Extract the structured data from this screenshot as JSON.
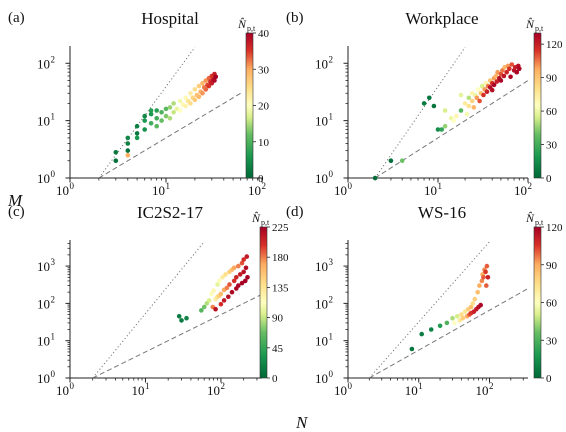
{
  "figure": {
    "ylabel": "M",
    "xlabel": "N"
  },
  "chart_data": [
    {
      "type": "scatter",
      "panel_label": "(a)",
      "title": "Hospital",
      "xscale": "log",
      "yscale": "log",
      "xlim": [
        1,
        100
      ],
      "ylim": [
        1,
        200
      ],
      "xticks": [
        {
          "v": 1,
          "base": "10",
          "exp": "0"
        },
        {
          "v": 10,
          "base": "10",
          "exp": "1"
        },
        {
          "v": 100,
          "base": "10",
          "exp": "2"
        }
      ],
      "yticks": [
        {
          "v": 1,
          "base": "10",
          "exp": "0"
        },
        {
          "v": 10,
          "base": "10",
          "exp": "1"
        },
        {
          "v": 100,
          "base": "10",
          "exp": "2"
        }
      ],
      "colorbar": {
        "label": "N̂ p,t",
        "min": 0,
        "max": 40,
        "ticks": [
          "0",
          "10",
          "20",
          "30",
          "40"
        ]
      },
      "reference_lines": [
        {
          "style": "dotted",
          "x": [
            2,
            20
          ],
          "y": [
            1,
            190
          ]
        },
        {
          "style": "dashed",
          "x": [
            2,
            60
          ],
          "y": [
            1,
            30
          ]
        }
      ],
      "points": [
        [
          3,
          2,
          1
        ],
        [
          3,
          2.8,
          2
        ],
        [
          4,
          4,
          3
        ],
        [
          4,
          3,
          1
        ],
        [
          4,
          5,
          4
        ],
        [
          5,
          6,
          2
        ],
        [
          5,
          8,
          3
        ],
        [
          5,
          5,
          6
        ],
        [
          6,
          7,
          5
        ],
        [
          6,
          10,
          6
        ],
        [
          6,
          12,
          4
        ],
        [
          7,
          9,
          9
        ],
        [
          7,
          13,
          6
        ],
        [
          7,
          15,
          7
        ],
        [
          8,
          8,
          11
        ],
        [
          8,
          11,
          9
        ],
        [
          8,
          15,
          7
        ],
        [
          9,
          10,
          12
        ],
        [
          9,
          14,
          10
        ],
        [
          10,
          12,
          13
        ],
        [
          10,
          16,
          11
        ],
        [
          11,
          11,
          15
        ],
        [
          11,
          17,
          14
        ],
        [
          12,
          14,
          16
        ],
        [
          12,
          20,
          15
        ],
        [
          13,
          16,
          18
        ],
        [
          14,
          15,
          20
        ],
        [
          14,
          22,
          19
        ],
        [
          15,
          19,
          21
        ],
        [
          16,
          18,
          22
        ],
        [
          16,
          25,
          21
        ],
        [
          17,
          22,
          24
        ],
        [
          18,
          20,
          25
        ],
        [
          18,
          30,
          23
        ],
        [
          19,
          25,
          26
        ],
        [
          20,
          23,
          27
        ],
        [
          20,
          35,
          25
        ],
        [
          21,
          28,
          28
        ],
        [
          22,
          26,
          29
        ],
        [
          22,
          40,
          27
        ],
        [
          23,
          32,
          30
        ],
        [
          24,
          30,
          31
        ],
        [
          24,
          45,
          29
        ],
        [
          25,
          38,
          32
        ],
        [
          26,
          35,
          33
        ],
        [
          26,
          50,
          31
        ],
        [
          27,
          42,
          34
        ],
        [
          28,
          40,
          35
        ],
        [
          28,
          55,
          33
        ],
        [
          29,
          48,
          36
        ],
        [
          30,
          45,
          37
        ],
        [
          30,
          60,
          35
        ],
        [
          31,
          52,
          38
        ],
        [
          32,
          50,
          39
        ],
        [
          32,
          65,
          37
        ],
        [
          33,
          58,
          40
        ],
        [
          4,
          2.5,
          30
        ]
      ]
    },
    {
      "type": "scatter",
      "panel_label": "(b)",
      "title": "Workplace",
      "xscale": "log",
      "yscale": "log",
      "xlim": [
        1,
        100
      ],
      "ylim": [
        1,
        200
      ],
      "xticks": [
        {
          "v": 1,
          "base": "10",
          "exp": "0"
        },
        {
          "v": 10,
          "base": "10",
          "exp": "1"
        },
        {
          "v": 100,
          "base": "10",
          "exp": "2"
        }
      ],
      "yticks": [
        {
          "v": 1,
          "base": "10",
          "exp": "0"
        },
        {
          "v": 10,
          "base": "10",
          "exp": "1"
        },
        {
          "v": 100,
          "base": "10",
          "exp": "2"
        }
      ],
      "colorbar": {
        "label": "N̂ p,t",
        "min": 0,
        "max": 130,
        "ticks": [
          "0",
          "30",
          "60",
          "90",
          "120"
        ]
      },
      "reference_lines": [
        {
          "style": "dotted",
          "x": [
            2,
            20
          ],
          "y": [
            1,
            190
          ]
        },
        {
          "style": "dashed",
          "x": [
            2,
            100
          ],
          "y": [
            1,
            50
          ]
        }
      ],
      "points": [
        [
          2,
          1,
          2
        ],
        [
          3,
          2,
          3
        ],
        [
          4,
          2,
          40
        ],
        [
          7,
          20,
          8
        ],
        [
          8,
          25,
          6
        ],
        [
          9,
          18,
          5
        ],
        [
          10,
          7,
          15
        ],
        [
          11,
          7,
          25
        ],
        [
          12,
          8,
          45
        ],
        [
          12,
          15,
          55
        ],
        [
          14,
          11,
          60
        ],
        [
          15,
          10,
          65
        ],
        [
          16,
          12,
          70
        ],
        [
          18,
          15,
          35
        ],
        [
          18,
          28,
          58
        ],
        [
          20,
          20,
          75
        ],
        [
          21,
          13,
          62
        ],
        [
          22,
          25,
          50
        ],
        [
          22,
          18,
          80
        ],
        [
          24,
          22,
          85
        ],
        [
          24,
          30,
          70
        ],
        [
          25,
          17,
          95
        ],
        [
          26,
          28,
          60
        ],
        [
          27,
          25,
          100
        ],
        [
          28,
          35,
          65
        ],
        [
          29,
          22,
          110
        ],
        [
          30,
          30,
          90
        ],
        [
          31,
          40,
          55
        ],
        [
          32,
          28,
          115
        ],
        [
          33,
          35,
          100
        ],
        [
          34,
          45,
          70
        ],
        [
          35,
          32,
          120
        ],
        [
          36,
          40,
          105
        ],
        [
          38,
          38,
          125
        ],
        [
          38,
          50,
          90
        ],
        [
          40,
          45,
          115
        ],
        [
          40,
          34,
          125
        ],
        [
          42,
          55,
          100
        ],
        [
          42,
          42,
          128
        ],
        [
          44,
          60,
          95
        ],
        [
          45,
          48,
          120
        ],
        [
          46,
          70,
          100
        ],
        [
          48,
          55,
          125
        ],
        [
          50,
          65,
          110
        ],
        [
          50,
          50,
          128
        ],
        [
          52,
          75,
          105
        ],
        [
          54,
          60,
          122
        ],
        [
          55,
          85,
          95
        ],
        [
          58,
          70,
          118
        ],
        [
          60,
          90,
          100
        ],
        [
          62,
          80,
          115
        ],
        [
          64,
          58,
          128
        ],
        [
          66,
          95,
          110
        ],
        [
          70,
          75,
          125
        ],
        [
          72,
          85,
          120
        ],
        [
          75,
          70,
          128
        ],
        [
          78,
          90,
          125
        ],
        [
          80,
          80,
          128
        ]
      ]
    },
    {
      "type": "scatter",
      "panel_label": "(c)",
      "title": "IC2S2-17",
      "xscale": "log",
      "yscale": "log",
      "xlim": [
        1,
        350
      ],
      "ylim": [
        1,
        5000
      ],
      "xticks": [
        {
          "v": 1,
          "base": "10",
          "exp": "0"
        },
        {
          "v": 10,
          "base": "10",
          "exp": "1"
        },
        {
          "v": 100,
          "base": "10",
          "exp": "2"
        }
      ],
      "yticks": [
        {
          "v": 1,
          "base": "10",
          "exp": "0"
        },
        {
          "v": 10,
          "base": "10",
          "exp": "1"
        },
        {
          "v": 100,
          "base": "10",
          "exp": "2"
        },
        {
          "v": 1000,
          "base": "10",
          "exp": "3"
        }
      ],
      "colorbar": {
        "label": "N̂ p,t",
        "min": 0,
        "max": 225,
        "ticks": [
          "0",
          "45",
          "90",
          "135",
          "180",
          "225"
        ]
      },
      "reference_lines": [
        {
          "style": "dotted",
          "x": [
            2,
            60
          ],
          "y": [
            1,
            4500
          ]
        },
        {
          "style": "dashed",
          "x": [
            2,
            350
          ],
          "y": [
            1,
            175
          ]
        }
      ],
      "points": [
        [
          28,
          45,
          15
        ],
        [
          30,
          35,
          12
        ],
        [
          35,
          40,
          20
        ],
        [
          55,
          65,
          60
        ],
        [
          60,
          80,
          70
        ],
        [
          65,
          100,
          85
        ],
        [
          70,
          120,
          95
        ],
        [
          75,
          180,
          110
        ],
        [
          78,
          80,
          180
        ],
        [
          80,
          220,
          120
        ],
        [
          85,
          130,
          130
        ],
        [
          85,
          70,
          215
        ],
        [
          90,
          150,
          140
        ],
        [
          90,
          320,
          100
        ],
        [
          95,
          400,
          110
        ],
        [
          95,
          160,
          150
        ],
        [
          100,
          180,
          160
        ],
        [
          100,
          95,
          200
        ],
        [
          105,
          500,
          130
        ],
        [
          110,
          230,
          170
        ],
        [
          110,
          120,
          210
        ],
        [
          115,
          600,
          140
        ],
        [
          120,
          260,
          180
        ],
        [
          125,
          150,
          215
        ],
        [
          130,
          700,
          150
        ],
        [
          130,
          320,
          190
        ],
        [
          140,
          800,
          160
        ],
        [
          140,
          200,
          220
        ],
        [
          150,
          400,
          200
        ],
        [
          150,
          900,
          170
        ],
        [
          160,
          250,
          222
        ],
        [
          160,
          500,
          205
        ],
        [
          170,
          1000,
          180
        ],
        [
          170,
          300,
          222
        ],
        [
          180,
          600,
          210
        ],
        [
          190,
          1200,
          190
        ],
        [
          190,
          350,
          224
        ],
        [
          200,
          700,
          215
        ],
        [
          200,
          1500,
          200
        ],
        [
          210,
          400,
          225
        ],
        [
          215,
          900,
          218
        ],
        [
          220,
          1800,
          210
        ],
        [
          225,
          500,
          225
        ]
      ]
    },
    {
      "type": "scatter",
      "panel_label": "(d)",
      "title": "WS-16",
      "xscale": "log",
      "yscale": "log",
      "xlim": [
        1,
        350
      ],
      "ylim": [
        1,
        5000
      ],
      "xticks": [
        {
          "v": 1,
          "base": "10",
          "exp": "0"
        },
        {
          "v": 10,
          "base": "10",
          "exp": "1"
        },
        {
          "v": 100,
          "base": "10",
          "exp": "2"
        }
      ],
      "yticks": [
        {
          "v": 1,
          "base": "10",
          "exp": "0"
        },
        {
          "v": 10,
          "base": "10",
          "exp": "1"
        },
        {
          "v": 100,
          "base": "10",
          "exp": "2"
        },
        {
          "v": 1000,
          "base": "10",
          "exp": "3"
        }
      ],
      "colorbar": {
        "label": "N̂ p,t",
        "min": 0,
        "max": 120,
        "ticks": [
          "0",
          "30",
          "60",
          "90",
          "120"
        ]
      },
      "reference_lines": [
        {
          "style": "dotted",
          "x": [
            2,
            100
          ],
          "y": [
            1,
            4500
          ]
        },
        {
          "style": "dashed",
          "x": [
            2,
            350
          ],
          "y": [
            1,
            250
          ]
        }
      ],
      "points": [
        [
          8,
          6,
          5
        ],
        [
          11,
          15,
          8
        ],
        [
          15,
          20,
          10
        ],
        [
          20,
          25,
          20
        ],
        [
          25,
          30,
          30
        ],
        [
          30,
          40,
          45
        ],
        [
          32,
          30,
          60
        ],
        [
          35,
          45,
          50
        ],
        [
          38,
          35,
          70
        ],
        [
          40,
          50,
          75
        ],
        [
          42,
          40,
          80
        ],
        [
          45,
          60,
          70
        ],
        [
          48,
          45,
          90
        ],
        [
          50,
          70,
          80
        ],
        [
          52,
          50,
          100
        ],
        [
          55,
          80,
          85
        ],
        [
          55,
          55,
          105
        ],
        [
          58,
          100,
          75
        ],
        [
          60,
          60,
          110
        ],
        [
          62,
          130,
          80
        ],
        [
          65,
          70,
          112
        ],
        [
          68,
          200,
          85
        ],
        [
          70,
          80,
          115
        ],
        [
          72,
          300,
          90
        ],
        [
          75,
          90,
          118
        ],
        [
          78,
          400,
          95
        ],
        [
          80,
          600,
          90
        ],
        [
          82,
          500,
          100
        ],
        [
          85,
          800,
          95
        ],
        [
          88,
          700,
          105
        ],
        [
          90,
          300,
          100
        ],
        [
          92,
          1000,
          100
        ],
        [
          95,
          500,
          110
        ]
      ]
    }
  ]
}
